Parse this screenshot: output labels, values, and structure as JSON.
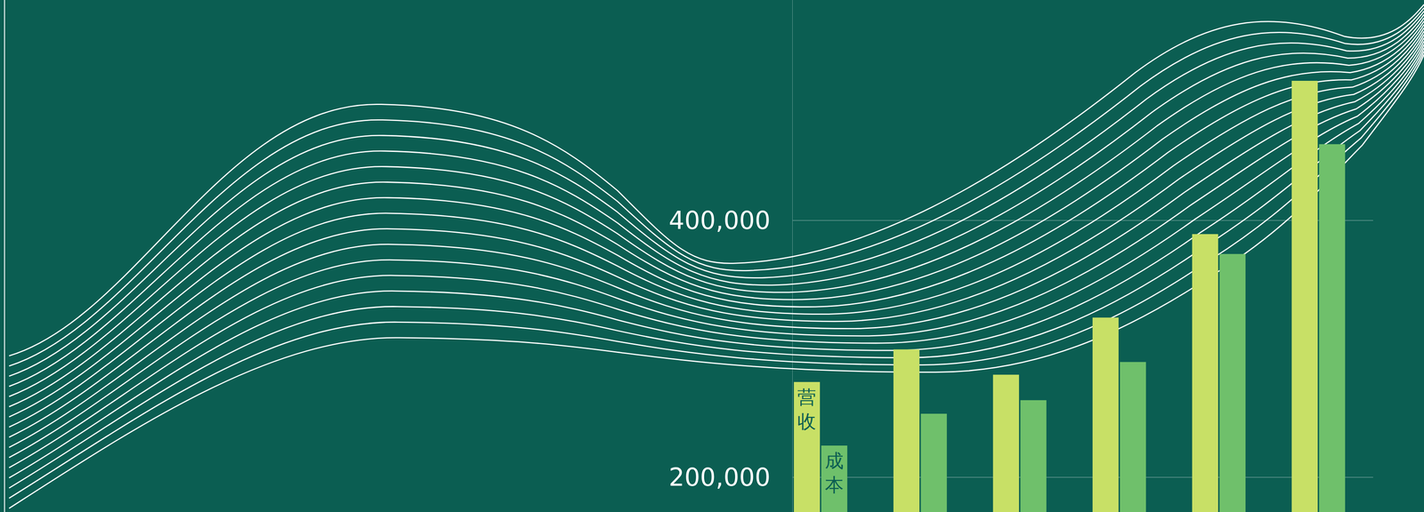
{
  "chart_data": {
    "type": "bar",
    "categories": [
      null,
      null,
      null,
      null,
      null,
      null
    ],
    "series": [
      {
        "name": "营收",
        "color": "#c8e066",
        "values": [
          274200,
          299600,
          279900,
          324400,
          389400,
          508800
        ]
      },
      {
        "name": "成本",
        "color": "#6fc06b",
        "values": [
          224700,
          249500,
          260100,
          289800,
          373900,
          459400
        ]
      }
    ],
    "ylim": [
      173000,
      571700
    ],
    "yticks": [
      {
        "value": 200000,
        "label": "200,000"
      },
      {
        "value": 400000,
        "label": "400,000"
      }
    ],
    "grid": true,
    "tick_labels": "y"
  }
}
